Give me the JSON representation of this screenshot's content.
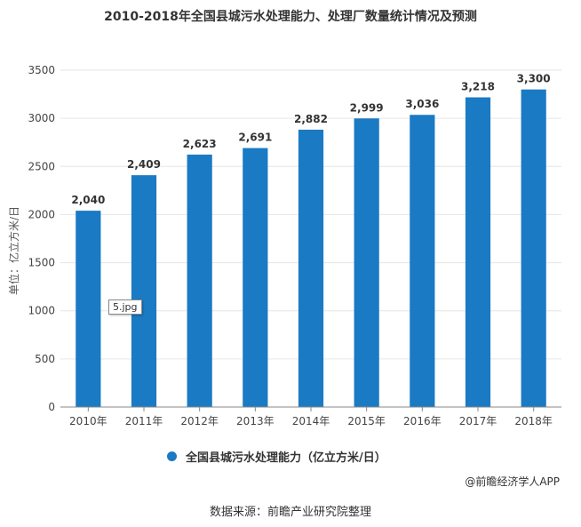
{
  "title": "2010-2018年全国县城污水处理能力、处理厂数量统计情况及预测",
  "ylabel": "单位：亿立方米/日",
  "legend_label": "全国县城污水处理能力（亿立方米/日）",
  "credit": "@前瞻经济学人APP",
  "source": "数据来源：前瞻产业研究院整理",
  "tooltip": "5.jpg",
  "colors": {
    "bar": "#1a7ac4",
    "grid": "#e6e6e6",
    "axis": "#888888"
  },
  "chart_data": {
    "type": "bar",
    "categories": [
      "2010年",
      "2011年",
      "2012年",
      "2013年",
      "2014年",
      "2015年",
      "2016年",
      "2017年",
      "2018年"
    ],
    "values": [
      2040,
      2409,
      2623,
      2691,
      2882,
      2999,
      3036,
      3218,
      3300
    ],
    "data_labels": [
      "2,040",
      "2,409",
      "2,623",
      "2,691",
      "2,882",
      "2,999",
      "3,036",
      "3,218",
      "3,300"
    ],
    "ylim": [
      0,
      3500
    ],
    "yticks": [
      0,
      500,
      1000,
      1500,
      2000,
      2500,
      3000,
      3500
    ],
    "grid": true,
    "legend_position": "bottom"
  }
}
